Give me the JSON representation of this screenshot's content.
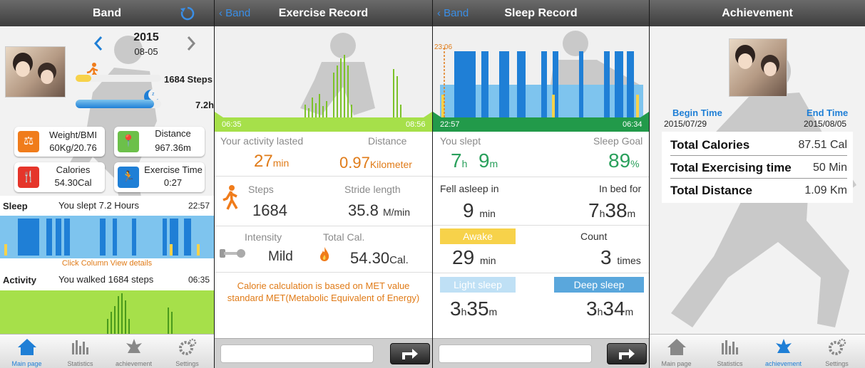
{
  "band": {
    "title": "Band",
    "year": "2015",
    "date": "08-05",
    "steps": "1684 Steps",
    "sleep_hours": "7.2h",
    "cards": [
      {
        "label": "Weight/BMI",
        "value": "60Kg/20.76",
        "color": "#f07c1b"
      },
      {
        "label": "Distance",
        "value": "967.36m",
        "color": "#6cc04a"
      },
      {
        "label": "Calories",
        "value": "54.30Cal",
        "color": "#e5352a"
      },
      {
        "label": "Exercise Time",
        "value": "0:27",
        "color": "#1f7fd6"
      }
    ],
    "sleep_row": {
      "label": "Sleep",
      "text": "You slept 7.2 Hours",
      "time": "22:57"
    },
    "click_hint": "Click Column View details",
    "activity_row": {
      "label": "Activity",
      "text": "You walked 1684 steps",
      "time": "06:35"
    }
  },
  "tabs": [
    {
      "label": "Main page",
      "icon": "home-icon"
    },
    {
      "label": "Statistics",
      "icon": "bar-chart-icon"
    },
    {
      "label": "achievement",
      "icon": "achievement-icon"
    },
    {
      "label": "Settings",
      "icon": "gear-icon"
    }
  ],
  "exercise": {
    "back": "Band",
    "title": "Exercise Record",
    "start": "06:35",
    "end": "08:56",
    "lasted_label": "Your activity lasted",
    "distance_label": "Distance",
    "lasted_value": "27",
    "lasted_unit": "min",
    "distance_value": "0.97",
    "distance_unit": "Kilometer",
    "steps_label": "Steps",
    "stride_label": "Stride length",
    "steps_value": "1684",
    "stride_value": "35.8",
    "stride_unit": "M/min",
    "intensity_label": "Intensity",
    "totalcal_label": "Total Cal.",
    "intensity_value": "Mild",
    "cal_value": "54.30",
    "cal_unit": "Cal.",
    "note": "Calorie calculation is based on MET value standard MET(Metabolic Equivalent of Energy)"
  },
  "sleep": {
    "back": "Band",
    "title": "Sleep Record",
    "marker": "23:06",
    "start": "22:57",
    "end": "06:34",
    "slept_label": "You slept",
    "goal_label": "Sleep Goal",
    "slept_h": "7",
    "slept_m": "9",
    "h_unit": "h",
    "m_unit": "m",
    "goal_value": "89",
    "goal_unit": "%",
    "fell_label": "Fell asleep in",
    "inbed_label": "In bed for",
    "fell_value": "9",
    "fell_unit": "min",
    "inbed_h": "7",
    "inbed_m": "38",
    "awake_label": "Awake",
    "count_label": "Count",
    "awake_value": "29",
    "awake_unit": "min",
    "count_value": "3",
    "count_unit": "times",
    "light_label": "Light sleep",
    "deep_label": "Deep sleep",
    "light_h": "3",
    "light_m": "35",
    "deep_h": "3",
    "deep_m": "34"
  },
  "achievement": {
    "title": "Achievement",
    "begin_label": "Begin Time",
    "begin_value": "2015/07/29",
    "end_label": "End Time",
    "end_value": "2015/08/05",
    "rows": [
      {
        "label": "Total Calories",
        "value": "87.51 Cal"
      },
      {
        "label": "Total Exercising time",
        "value": "50 Min"
      },
      {
        "label": "Total Distance",
        "value": "1.09 Km"
      }
    ]
  },
  "colors": {
    "accent": "#1f7fd6",
    "orange": "#e07b18",
    "green": "#2aa05c",
    "lime": "#a6e04a",
    "sleep_deep": "#1f7fd6",
    "sleep_light": "#7ec4ee",
    "awake": "#f7d24a"
  }
}
